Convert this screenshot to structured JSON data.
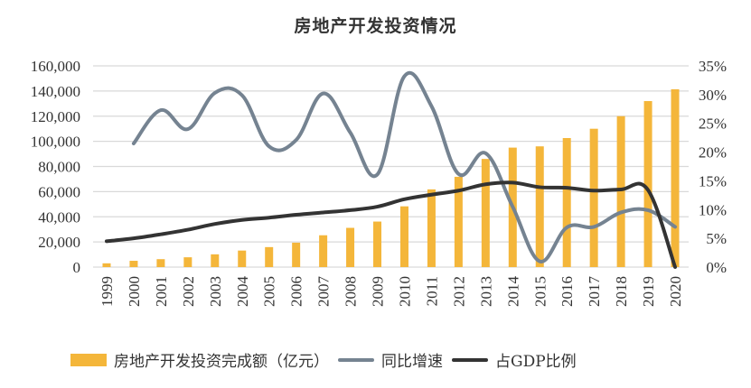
{
  "chart_data": {
    "type": "bar+line",
    "title": "房地产开发投资情况",
    "categories": [
      "1999",
      "2000",
      "2001",
      "2002",
      "2003",
      "2004",
      "2005",
      "2006",
      "2007",
      "2008",
      "2009",
      "2010",
      "2011",
      "2012",
      "2013",
      "2014",
      "2015",
      "2016",
      "2017",
      "2018",
      "2019",
      "2020"
    ],
    "left_axis": {
      "ylim": [
        0,
        160000
      ],
      "ticks": [
        "0",
        "20,000",
        "40,000",
        "60,000",
        "80,000",
        "100,000",
        "120,000",
        "140,000",
        "160,000"
      ]
    },
    "right_axis": {
      "ylim": [
        0,
        35
      ],
      "ticks": [
        "0%",
        "5%",
        "10%",
        "15%",
        "20%",
        "25%",
        "30%",
        "35%"
      ]
    },
    "grid": true,
    "legend_position": "bottom",
    "series": [
      {
        "name": "房地产开发投资完成额（亿元）",
        "type": "bar",
        "axis": "left",
        "color": "#F4B63A",
        "values": [
          3000,
          5000,
          6300,
          7800,
          10150,
          13150,
          15900,
          19400,
          25300,
          31200,
          36200,
          48300,
          61800,
          71800,
          86000,
          95000,
          96000,
          102600,
          110000,
          120000,
          132000,
          141400
        ]
      },
      {
        "name": "同比增速",
        "type": "line",
        "axis": "right",
        "unit": "%",
        "color": "#758391",
        "values": [
          null,
          21.5,
          27.3,
          24.0,
          30.3,
          29.9,
          21.0,
          22.1,
          30.2,
          23.4,
          16.1,
          33.2,
          28.0,
          16.2,
          19.8,
          10.5,
          1.0,
          6.9,
          7.0,
          9.5,
          9.9,
          7.0
        ]
      },
      {
        "name": "占GDP比例",
        "type": "line",
        "axis": "right",
        "unit": "%",
        "color": "#333333",
        "values": [
          4.5,
          5.0,
          5.7,
          6.5,
          7.5,
          8.2,
          8.6,
          9.1,
          9.5,
          9.9,
          10.5,
          11.8,
          12.6,
          13.3,
          14.4,
          14.7,
          13.9,
          13.8,
          13.3,
          13.5,
          13.4,
          0
        ]
      }
    ]
  }
}
